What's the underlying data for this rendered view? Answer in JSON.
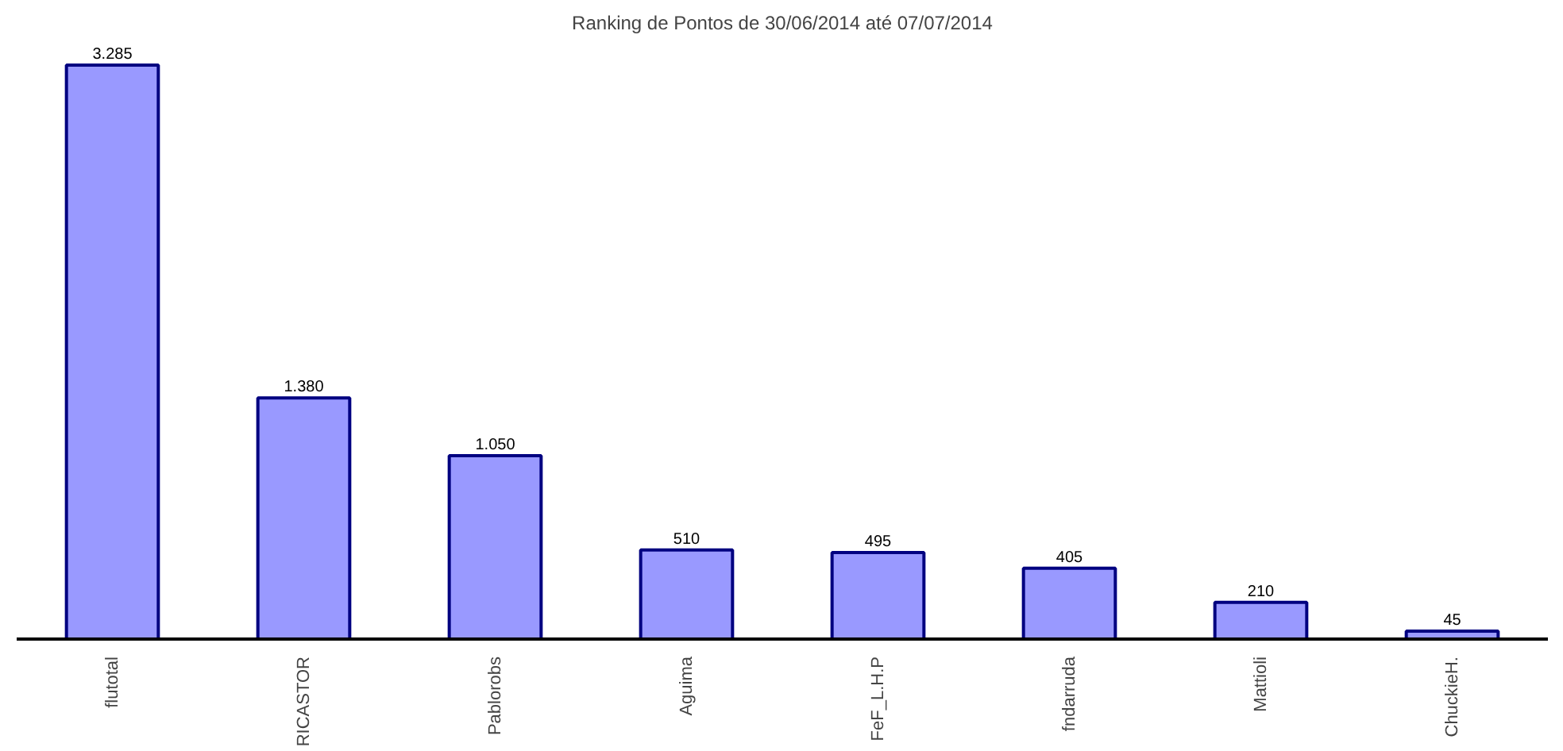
{
  "chart_data": {
    "type": "bar",
    "title": "Ranking de Pontos de 30/06/2014 até 07/07/2014",
    "categories": [
      "flutotal",
      "RICASTOR",
      "Pablorobs",
      "Aguima",
      "FeF_L.H.P",
      "fndarruda",
      "Mattioli",
      "ChuckieH."
    ],
    "values": [
      3285,
      1380,
      1050,
      510,
      495,
      405,
      210,
      45
    ],
    "value_labels": [
      "3.285",
      "1.380",
      "1.050",
      "510",
      "495",
      "405",
      "210",
      "45"
    ],
    "color": "#9999ff"
  }
}
